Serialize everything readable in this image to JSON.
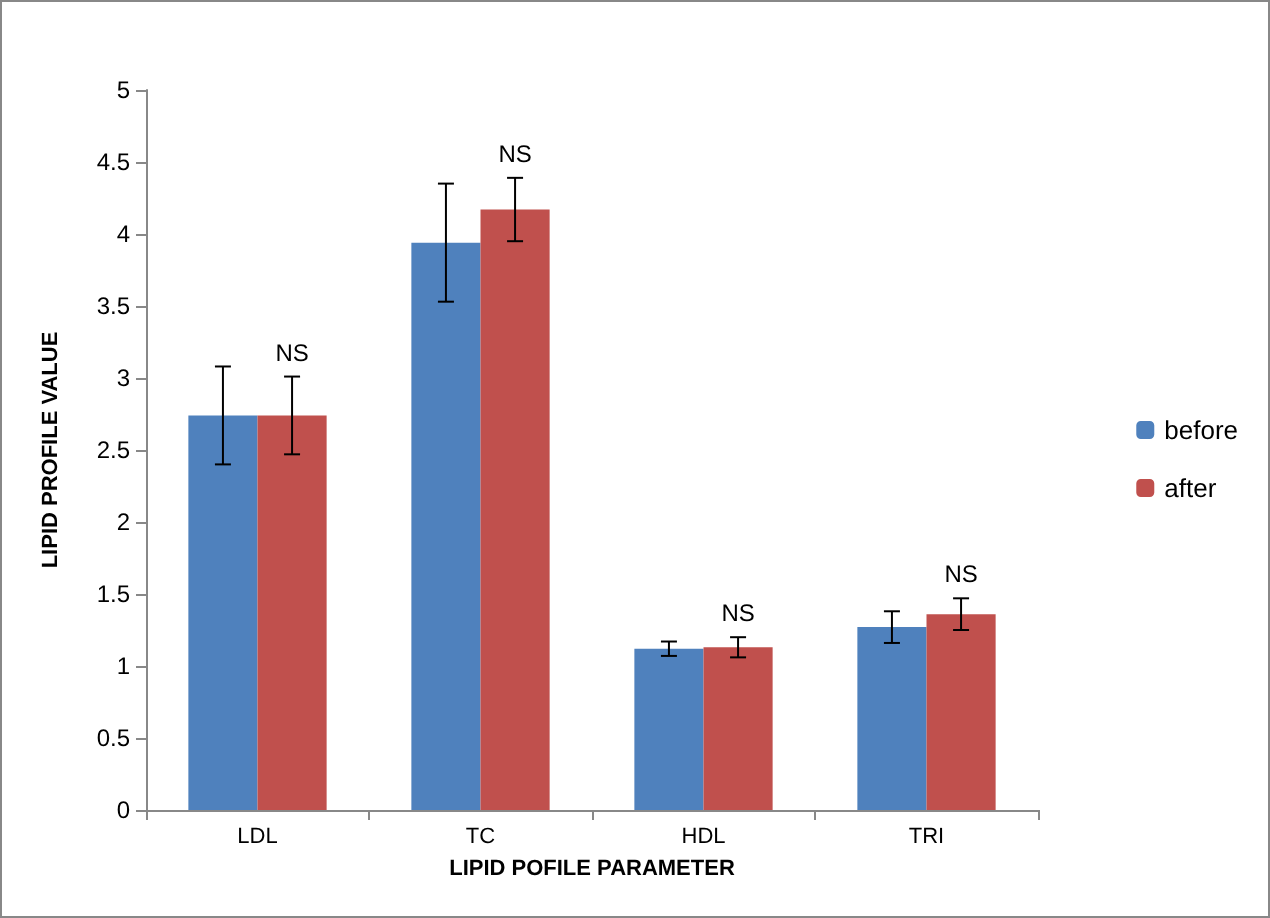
{
  "chart_data": {
    "type": "bar",
    "xlabel": "LIPID POFILE PARAMETER",
    "ylabel": "LIPID PROFILE VALUE",
    "categories": [
      "LDL",
      "TC",
      "HDL",
      "TRI"
    ],
    "series": [
      {
        "name": "before",
        "color": "#4f81bd",
        "values": [
          2.74,
          3.94,
          1.12,
          1.27
        ],
        "errors": [
          0.34,
          0.41,
          0.05,
          0.11
        ]
      },
      {
        "name": "after",
        "color": "#c0504d",
        "values": [
          2.74,
          4.17,
          1.13,
          1.36
        ],
        "errors": [
          0.27,
          0.22,
          0.07,
          0.11
        ]
      }
    ],
    "ylim": [
      0,
      5
    ],
    "yticks": [
      0,
      0.5,
      1,
      1.5,
      2,
      2.5,
      3,
      3.5,
      4,
      4.5,
      5
    ],
    "grid": false,
    "legend": "right",
    "annotations": [
      "NS",
      "NS",
      "NS",
      "NS"
    ]
  }
}
